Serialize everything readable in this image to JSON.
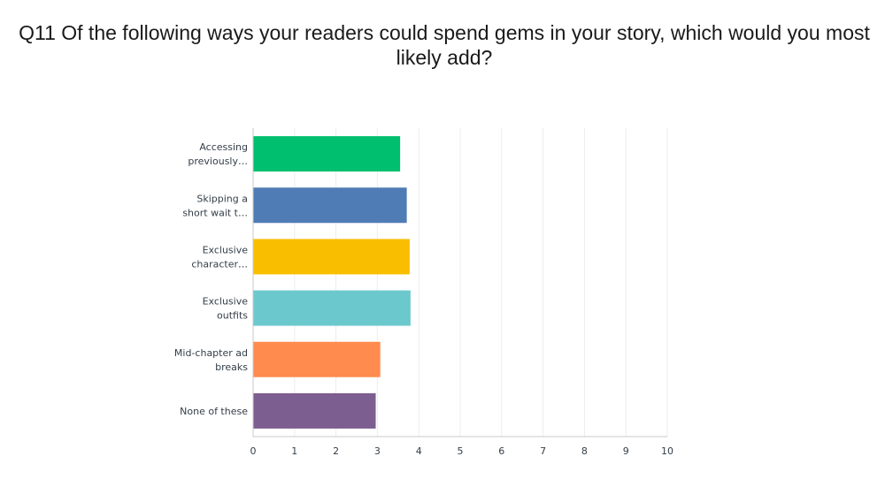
{
  "chart_data": {
    "type": "bar",
    "orientation": "horizontal",
    "title": "Q11 Of the following ways your readers could spend gems in your story, which would you most likely add?",
    "categories": [
      [
        "Accessing",
        "previously…"
      ],
      [
        "Skipping a",
        "short wait t…"
      ],
      [
        "Exclusive",
        "character…"
      ],
      [
        "Exclusive",
        "outfits"
      ],
      [
        "Mid-chapter ad",
        "breaks"
      ],
      [
        "None of these"
      ]
    ],
    "values": [
      3.55,
      3.71,
      3.78,
      3.8,
      3.07,
      2.96
    ],
    "colors": [
      "#00bf6f",
      "#507cb6",
      "#f9be00",
      "#6bc8cd",
      "#ff8b4f",
      "#7d5e90"
    ],
    "xlim": [
      0,
      10
    ],
    "xticks": [
      "0",
      "1",
      "2",
      "3",
      "4",
      "5",
      "6",
      "7",
      "8",
      "9",
      "10"
    ],
    "grid": true,
    "legend": "none"
  }
}
